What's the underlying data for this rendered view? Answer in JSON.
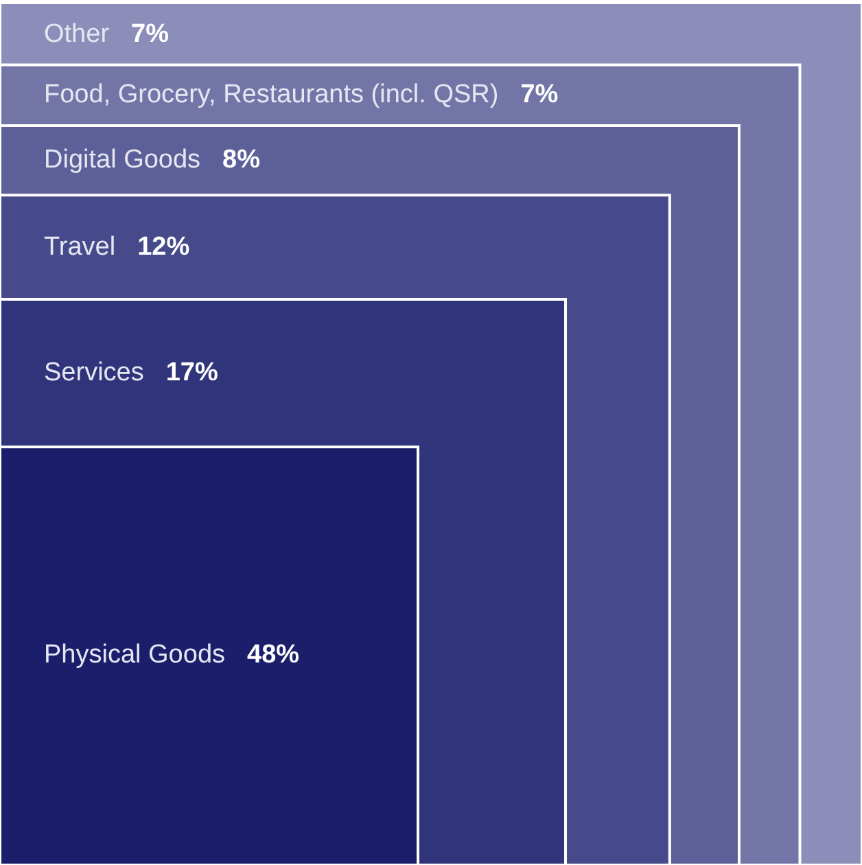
{
  "chart_data": {
    "type": "other",
    "categories": [
      "Other",
      "Food, Grocery, Restaurants (incl. QSR)",
      "Digital Goods",
      "Travel",
      "Services",
      "Physical Goods"
    ],
    "values": [
      7,
      7,
      8,
      12,
      17,
      48
    ],
    "value_labels": [
      "7%",
      "7%",
      "8%",
      "12%",
      "17%",
      "48%"
    ],
    "colors": [
      "#8c8eb9",
      "#7375a7",
      "#5d6098",
      "#474a8a",
      "#2f347b",
      "#1a1e6b"
    ]
  }
}
